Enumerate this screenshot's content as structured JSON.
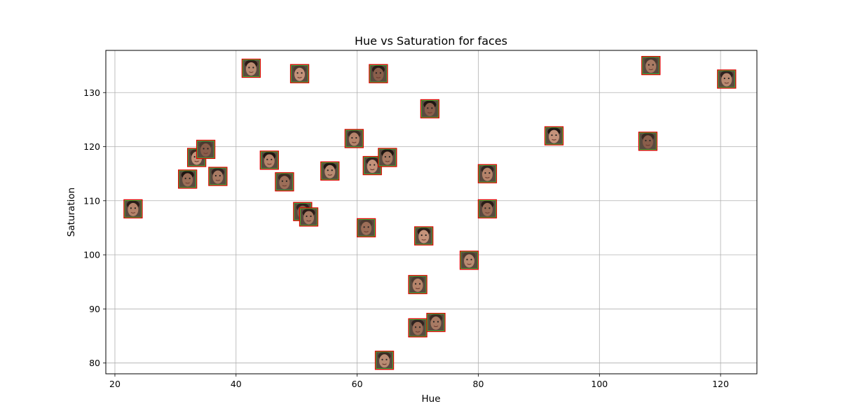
{
  "chart_data": {
    "type": "scatter",
    "title": "Hue vs Saturation for faces",
    "xlabel": "Hue",
    "ylabel": "Saturation",
    "xlim": [
      18.5,
      126
    ],
    "ylim": [
      78,
      137.8
    ],
    "xticks": [
      20,
      40,
      60,
      80,
      100,
      120
    ],
    "yticks": [
      80,
      90,
      100,
      110,
      120,
      130
    ],
    "grid": true,
    "marker": "face-thumbnail",
    "points": [
      {
        "x": 23,
        "y": 108.5
      },
      {
        "x": 32,
        "y": 114
      },
      {
        "x": 33.5,
        "y": 118
      },
      {
        "x": 35,
        "y": 119.5
      },
      {
        "x": 37,
        "y": 114.5
      },
      {
        "x": 42.5,
        "y": 134.5
      },
      {
        "x": 45.5,
        "y": 117.5
      },
      {
        "x": 48,
        "y": 113.5
      },
      {
        "x": 50.5,
        "y": 133.5
      },
      {
        "x": 51,
        "y": 108
      },
      {
        "x": 52,
        "y": 107
      },
      {
        "x": 55.5,
        "y": 115.5
      },
      {
        "x": 59.5,
        "y": 121.5
      },
      {
        "x": 61.5,
        "y": 105
      },
      {
        "x": 62.5,
        "y": 116.5
      },
      {
        "x": 63.5,
        "y": 133.5
      },
      {
        "x": 65,
        "y": 118
      },
      {
        "x": 64.5,
        "y": 80.5
      },
      {
        "x": 70,
        "y": 94.5
      },
      {
        "x": 70,
        "y": 86.5
      },
      {
        "x": 71,
        "y": 103.5
      },
      {
        "x": 72,
        "y": 127
      },
      {
        "x": 73,
        "y": 87.5
      },
      {
        "x": 78.5,
        "y": 99
      },
      {
        "x": 81.5,
        "y": 115
      },
      {
        "x": 81.5,
        "y": 108.5
      },
      {
        "x": 92.5,
        "y": 122
      },
      {
        "x": 108,
        "y": 121
      },
      {
        "x": 108.5,
        "y": 135
      },
      {
        "x": 121,
        "y": 132.5
      }
    ]
  }
}
